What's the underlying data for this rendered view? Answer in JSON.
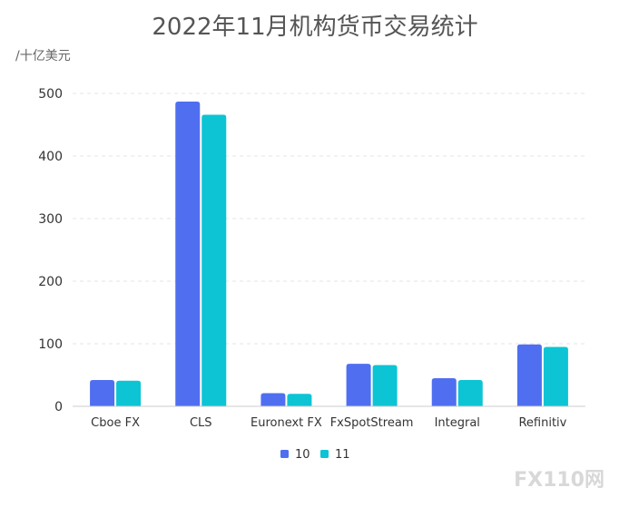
{
  "chart_data": {
    "type": "bar",
    "title": "2022年11月机构货币交易统计",
    "ylabel": "/十亿美元",
    "xlabel": "",
    "ylim": [
      0,
      500
    ],
    "yticks": [
      0,
      100,
      200,
      300,
      400,
      500
    ],
    "grid": true,
    "legend_position": "bottom",
    "categories": [
      "Cboe FX",
      "CLS",
      "Euronext FX",
      "FxSpotStream",
      "Integral",
      "Refinitiv"
    ],
    "series": [
      {
        "name": "10",
        "color": "#4f6ff0",
        "values": [
          42,
          487,
          21,
          68,
          45,
          99
        ]
      },
      {
        "name": "11",
        "color": "#0cc4d4",
        "values": [
          41,
          466,
          20,
          66,
          42,
          95
        ]
      }
    ]
  },
  "watermark": "FX110网"
}
